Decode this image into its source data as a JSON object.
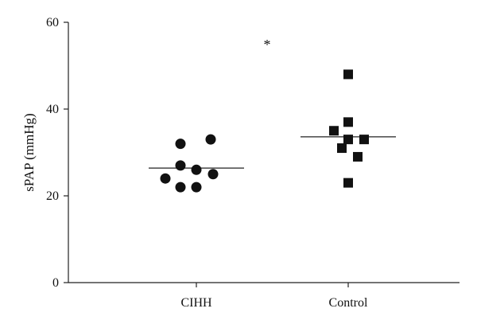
{
  "chart_data": {
    "type": "scatter",
    "title": "",
    "ylabel": "sPAP (mmHg)",
    "xlabel": "",
    "ylim": [
      0,
      60
    ],
    "yticks": [
      0,
      20,
      40,
      60
    ],
    "grid": false,
    "categories": [
      "CIHH",
      "Control"
    ],
    "series": [
      {
        "name": "CIHH",
        "marker": "circle",
        "values": [
          33,
          32,
          27,
          26,
          25,
          24,
          22,
          22
        ],
        "mean": 26.4
      },
      {
        "name": "Control",
        "marker": "square",
        "values": [
          48,
          37,
          35,
          33,
          33,
          31,
          29,
          23
        ],
        "mean": 33.6
      }
    ],
    "annotations": [
      {
        "text": "*"
      }
    ],
    "colors": {
      "points": "#111111",
      "axes": "#222222"
    }
  }
}
